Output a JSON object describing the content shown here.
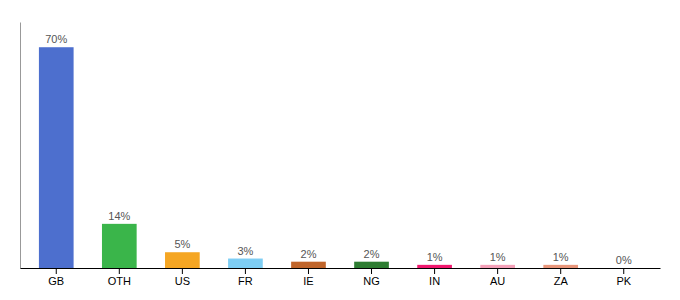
{
  "chart_data": {
    "type": "bar",
    "categories": [
      "GB",
      "OTH",
      "US",
      "FR",
      "IE",
      "NG",
      "IN",
      "AU",
      "ZA",
      "PK"
    ],
    "values": [
      70,
      14,
      5,
      3,
      2,
      2,
      1,
      1,
      1,
      0
    ],
    "value_labels": [
      "70%",
      "14%",
      "5%",
      "3%",
      "2%",
      "2%",
      "1%",
      "1%",
      "1%",
      "0%"
    ],
    "colors": [
      "#4d6fce",
      "#3ab54a",
      "#f5a623",
      "#7ecef4",
      "#c0652b",
      "#2e7d32",
      "#f0186e",
      "#f4a0b8",
      "#e8957a",
      "#f0186e"
    ],
    "ylim": [
      0,
      78
    ],
    "data_labels": true,
    "tick_labels": "x"
  }
}
